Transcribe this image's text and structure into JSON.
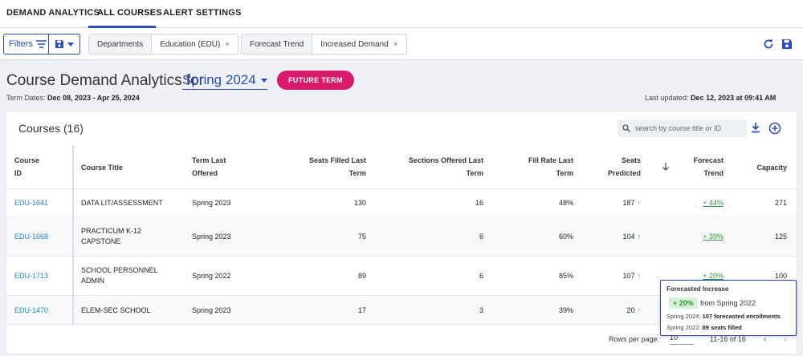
{
  "nav": {
    "tabs": [
      {
        "label": "DEMAND ANALYTICS"
      },
      {
        "label": "ALL COURSES"
      },
      {
        "label": "ALERT SETTINGS"
      }
    ],
    "active_tab": "ALL COURSES"
  },
  "filterbar": {
    "filters_label": "Filters",
    "chips": [
      {
        "key": "Departments",
        "value": "Education (EDU)"
      },
      {
        "key": "Forecast Trend",
        "value": "Increased Demand"
      }
    ],
    "close_glyph": "×"
  },
  "header": {
    "title": "Course Demand Analytics for",
    "term": "Spring 2024",
    "future_button": "FUTURE TERM",
    "term_dates_label": "Term Dates:",
    "term_dates": "Dec 08, 2023 - Apr 25, 2024",
    "last_updated_label": "Last updated:",
    "last_updated": "Dec 12, 2023 at 09:41 AM"
  },
  "table": {
    "title": "Courses (16)",
    "search_placeholder": "search by course title or ID",
    "columns": {
      "course_id": [
        "Course",
        "ID"
      ],
      "title": "Course Title",
      "term_last_offered": [
        "Term Last",
        "Offered"
      ],
      "seats_filled": [
        "Seats Filled Last",
        "Term"
      ],
      "sections_offered": [
        "Sections Offered Last",
        "Term"
      ],
      "fill_rate": [
        "Fill Rate Last",
        "Term"
      ],
      "seats_predicted": [
        "Seats",
        "Predicted"
      ],
      "forecast_trend": [
        "Forecast",
        "Trend"
      ],
      "capacity": "Capacity"
    },
    "rows": [
      {
        "id": "EDU-1641",
        "title": [
          "DATA LIT/ASSESSMENT"
        ],
        "term": "Spring 2023",
        "seats_filled": "130",
        "sections": "16",
        "fill_rate": "48%",
        "predicted": "187",
        "trend": "+ 44%",
        "capacity": "271"
      },
      {
        "id": "EDU-1668",
        "title": [
          "PRACTICUM K-12",
          "CAPSTONE"
        ],
        "term": "Spring 2023",
        "seats_filled": "75",
        "sections": "6",
        "fill_rate": "60%",
        "predicted": "104",
        "trend": "+ 39%",
        "capacity": "125"
      },
      {
        "id": "EDU-1713",
        "title": [
          "SCHOOL PERSONNEL",
          "ADMIN"
        ],
        "term": "Spring 2022",
        "seats_filled": "89",
        "sections": "6",
        "fill_rate": "85%",
        "predicted": "107",
        "trend": "+ 20%",
        "capacity": "100"
      },
      {
        "id": "EDU-1470",
        "title": [
          "ELEM-SEC SCHOOL"
        ],
        "term": "Spring 2023",
        "seats_filled": "17",
        "sections": "3",
        "fill_rate": "39%",
        "predicted": "20",
        "trend": "",
        "capacity": ""
      }
    ],
    "up_arrow": "↑"
  },
  "tooltip": {
    "title": "Forecasted Increase",
    "pill": "+ 20%",
    "from": "from Spring 2022",
    "line1_label": "Spring 2024:",
    "line1_value": "107 forecasted enrollments",
    "line2_label": "Spring 2022:",
    "line2_value": "89 seats filled"
  },
  "pagination": {
    "rows_per_page_label": "Rows per page:",
    "rows_per_page": "10",
    "range": "11-16 of 16",
    "prev": "‹",
    "next": "›"
  },
  "colors": {
    "accent": "#2a4bb8",
    "future_button": "#d81b6c",
    "trend_up": "#2e9b3c",
    "link": "#1d88c9"
  }
}
